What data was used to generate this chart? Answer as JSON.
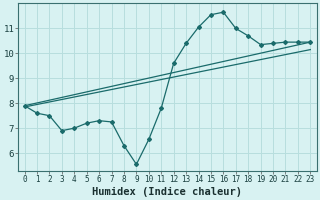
{
  "xlabel": "Humidex (Indice chaleur)",
  "background_color": "#d8f2f2",
  "line_color": "#1a6b6b",
  "grid_color": "#b8dede",
  "x_values": [
    0,
    1,
    2,
    3,
    4,
    5,
    6,
    7,
    8,
    9,
    10,
    11,
    12,
    13,
    14,
    15,
    16,
    17,
    18,
    19,
    20,
    21,
    22,
    23
  ],
  "series1": [
    7.9,
    7.6,
    7.5,
    6.9,
    7.0,
    7.2,
    7.3,
    7.25,
    6.3,
    5.55,
    6.55,
    7.8,
    9.6,
    10.4,
    11.05,
    11.55,
    11.65,
    11.0,
    10.7,
    10.35,
    10.4,
    10.45,
    10.45,
    10.45
  ],
  "series2_x": [
    0,
    23
  ],
  "series2_y": [
    7.9,
    10.45
  ],
  "series3_x": [
    0,
    23
  ],
  "series3_y": [
    7.85,
    10.15
  ],
  "ylim": [
    5.3,
    12.0
  ],
  "xlim": [
    -0.5,
    23.5
  ],
  "yticks": [
    6,
    7,
    8,
    9,
    10,
    11
  ],
  "xticks": [
    0,
    1,
    2,
    3,
    4,
    5,
    6,
    7,
    8,
    9,
    10,
    11,
    12,
    13,
    14,
    15,
    16,
    17,
    18,
    19,
    20,
    21,
    22,
    23
  ],
  "tick_fontsize": 5.5,
  "xlabel_fontsize": 7.5
}
